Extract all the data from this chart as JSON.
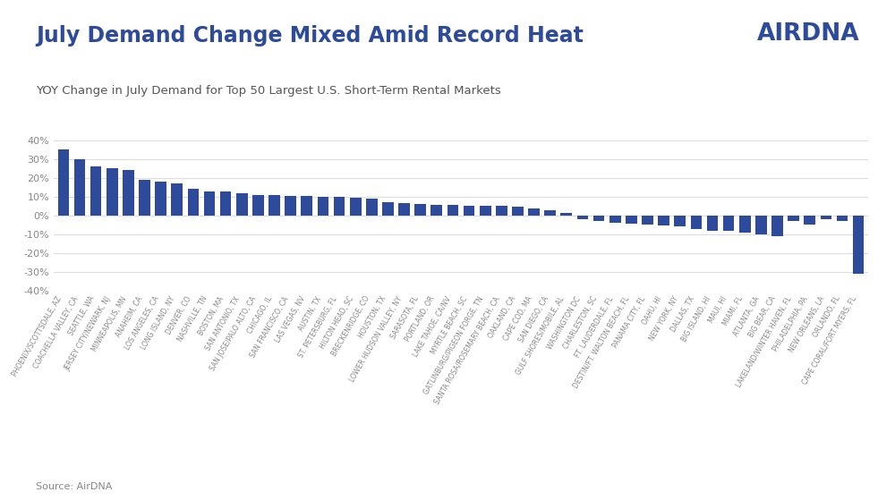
{
  "title": "July Demand Change Mixed Amid Record Heat",
  "subtitle": "YOY Change in July Demand for Top 50 Largest U.S. Short-Term Rental Markets",
  "source": "Source: AirDNA",
  "logo_text": "AIRDNA",
  "bar_color": "#2E4B9B",
  "background_color": "#ffffff",
  "categories": [
    "PHOENIX/SCOTTSDALE, AZ",
    "COACHELLA VALLEY, CA",
    "SEATTLE, WA",
    "JERSEY CITY/NEWARK, NJ",
    "MINNEAPOLIS, MN",
    "ANAHEIM, CA",
    "LOS ANGELES, CA",
    "LONG ISLAND, NY",
    "DENVER, CO",
    "NASHVILLE, TN",
    "BOSTON, MA",
    "SAN ANTONIO, TX",
    "SAN JOSE/PALO ALTO, CA",
    "CHICAGO, IL",
    "SAN FRANCISCO, CA",
    "LAS VEGAS, NV",
    "AUSTIN, TX",
    "ST. PETERSBURG, FL",
    "HILTON HEAD, SC",
    "BRECKENRIDGE, CO",
    "HOUSTON, TX",
    "LOWER HUDSON VALLEY, NY",
    "SARASOTA, FL",
    "PORTLAND, OR",
    "LAKE TAHOE, CA/NV",
    "MYRTLE BEACH, SC",
    "GATLINBURG/PIGEON FORGE, TN",
    "SANTA ROSA/ROSEMARY BEACH, CA",
    "OAKLAND, CA",
    "CAPE COD, MA",
    "SAN DIEGO, CA",
    "GULF SHORES/MOBILE, AL",
    "WASHINGTON DC",
    "CHARLESTON, SC",
    "FT. LAUDERDALE, FL",
    "DESTIN/FT. WALTON BEACH, FL",
    "PANAMA CITY, FL",
    "OAHU, HI",
    "NEW YORK, NY",
    "DALLAS, TX",
    "BIG ISLAND, HI",
    "MAUI, HI",
    "MIAMI, FL",
    "ATLANTA, GA",
    "BIG BEAR, CA",
    "LAKELAND/WINTER HAVEN, FL",
    "PHILADELPHIA, PA",
    "NEW ORLEANS, LA",
    "ORLANDO, FL",
    "CAPE CORAL/FORT MYERS, FL"
  ],
  "values": [
    35,
    30,
    26,
    25,
    24,
    19,
    18,
    17,
    14,
    13,
    13,
    12,
    11,
    11,
    10.5,
    10.5,
    10,
    10,
    9.5,
    9,
    7,
    6.5,
    6,
    5.5,
    5.5,
    5,
    5,
    5,
    4.5,
    3.5,
    3,
    1.5,
    -2,
    -3,
    -4,
    -4.5,
    -5,
    -5.5,
    -6,
    -7,
    -8,
    -8,
    -9,
    -10,
    -11,
    -3,
    -5,
    -2,
    -3,
    -31
  ],
  "ylim": [
    -40,
    40
  ],
  "yticks": [
    -40,
    -30,
    -20,
    -10,
    0,
    10,
    20,
    30,
    40
  ],
  "grid_color": "#dddddd",
  "title_color": "#2E4B9B",
  "subtitle_color": "#555555",
  "source_color": "#888888",
  "tick_label_color": "#888888"
}
